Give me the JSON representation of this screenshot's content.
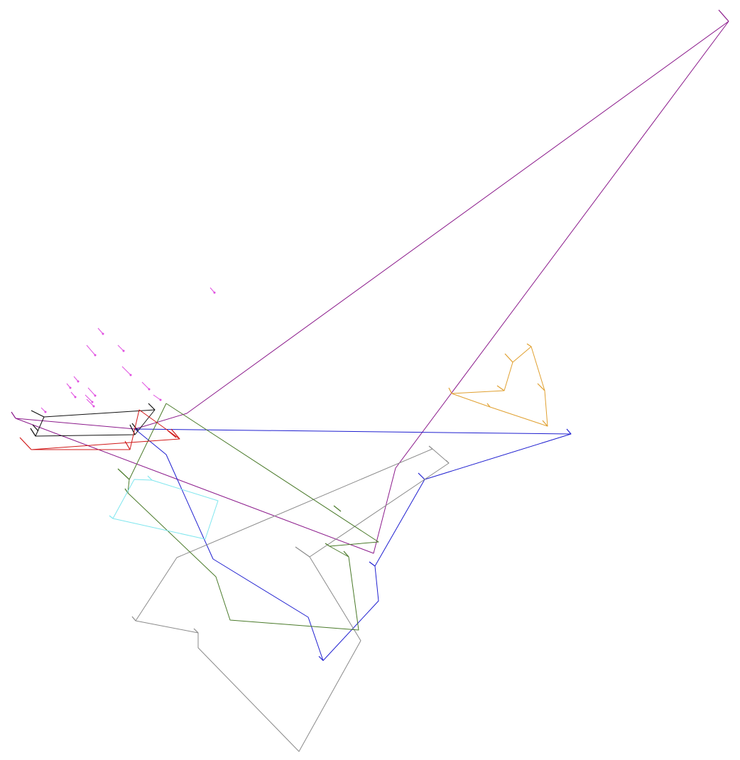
{
  "diagram": {
    "type": "vector-track-plot",
    "background": "#ffffff",
    "tracks": [
      {
        "id": "purple",
        "color": "#8b1a8b"
      },
      {
        "id": "blue",
        "color": "#1f1fd0"
      },
      {
        "id": "gray",
        "color": "#8a8a8a"
      },
      {
        "id": "green",
        "color": "#4a7a2a"
      },
      {
        "id": "orange",
        "color": "#e0a030"
      },
      {
        "id": "cyan",
        "color": "#7fe6ee"
      },
      {
        "id": "black",
        "color": "#111111"
      },
      {
        "id": "red",
        "color": "#d01818"
      },
      {
        "id": "magenta-markers",
        "color": "#e050e0"
      }
    ]
  }
}
